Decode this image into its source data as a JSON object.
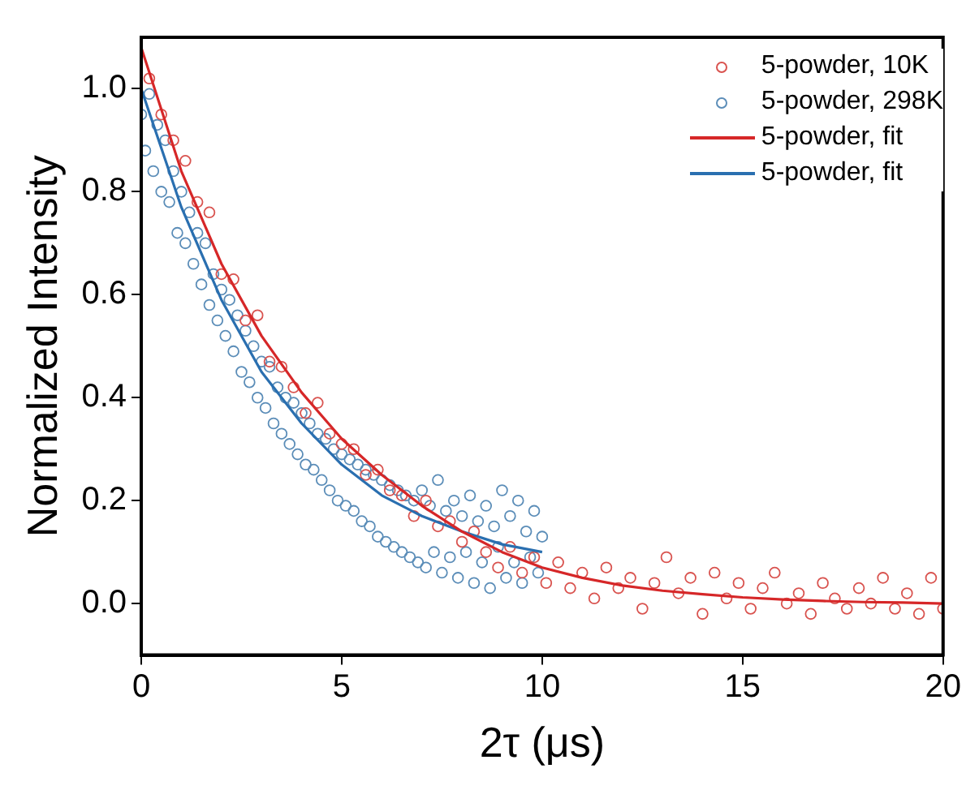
{
  "chart_data": {
    "type": "scatter",
    "xlabel": "2τ (μs)",
    "ylabel": "Normalized Intensity",
    "xlim": [
      0,
      20
    ],
    "ylim": [
      -0.1,
      1.1
    ],
    "xticks": [
      0,
      5,
      10,
      15,
      20
    ],
    "yticks": [
      {
        "value": 0,
        "label": "0.0"
      },
      {
        "value": 0.2,
        "label": "0.2"
      },
      {
        "value": 0.4,
        "label": "0.4"
      },
      {
        "value": 0.6,
        "label": "0.6"
      },
      {
        "value": 0.8,
        "label": "0.8"
      },
      {
        "value": 1,
        "label": "1.0"
      }
    ],
    "grid": false,
    "legend": "top right",
    "marker": "circle",
    "series": [
      {
        "name": "5-powder, 10K",
        "type": "scatter",
        "color": "#d9534f",
        "x": [
          0.2,
          0.5,
          0.8,
          1.1,
          1.4,
          1.7,
          2.0,
          2.3,
          2.6,
          2.9,
          3.2,
          3.5,
          3.8,
          4.1,
          4.4,
          4.7,
          5.0,
          5.3,
          5.6,
          5.9,
          6.2,
          6.5,
          6.8,
          7.1,
          7.4,
          7.7,
          8.0,
          8.3,
          8.6,
          8.9,
          9.2,
          9.5,
          9.8,
          10.1,
          10.4,
          10.7,
          11.0,
          11.3,
          11.6,
          11.9,
          12.2,
          12.5,
          12.8,
          13.1,
          13.4,
          13.7,
          14.0,
          14.3,
          14.6,
          14.9,
          15.2,
          15.5,
          15.8,
          16.1,
          16.4,
          16.7,
          17.0,
          17.3,
          17.6,
          17.9,
          18.2,
          18.5,
          18.8,
          19.1,
          19.4,
          19.7,
          20.0
        ],
        "values": [
          1.02,
          0.95,
          0.9,
          0.86,
          0.78,
          0.76,
          0.64,
          0.63,
          0.55,
          0.56,
          0.47,
          0.46,
          0.42,
          0.37,
          0.39,
          0.33,
          0.31,
          0.3,
          0.25,
          0.26,
          0.22,
          0.21,
          0.17,
          0.2,
          0.15,
          0.16,
          0.12,
          0.14,
          0.1,
          0.07,
          0.11,
          0.06,
          0.09,
          0.04,
          0.08,
          0.03,
          0.06,
          0.01,
          0.07,
          0.03,
          0.05,
          -0.01,
          0.04,
          0.09,
          0.02,
          0.05,
          -0.02,
          0.06,
          0.01,
          0.04,
          -0.01,
          0.03,
          0.06,
          0.0,
          0.02,
          -0.02,
          0.04,
          0.01,
          -0.01,
          0.03,
          0.0,
          0.05,
          -0.01,
          0.02,
          -0.02,
          0.05,
          -0.01
        ]
      },
      {
        "name": "5-powder, 298K",
        "type": "scatter",
        "color": "#5b8db8",
        "x": [
          0.0,
          0.1,
          0.2,
          0.3,
          0.4,
          0.5,
          0.6,
          0.7,
          0.8,
          0.9,
          1.0,
          1.1,
          1.2,
          1.3,
          1.4,
          1.5,
          1.6,
          1.7,
          1.8,
          1.9,
          2.0,
          2.1,
          2.2,
          2.3,
          2.4,
          2.5,
          2.6,
          2.7,
          2.8,
          2.9,
          3.0,
          3.1,
          3.2,
          3.3,
          3.4,
          3.5,
          3.6,
          3.7,
          3.8,
          3.9,
          4.0,
          4.1,
          4.2,
          4.3,
          4.4,
          4.5,
          4.6,
          4.7,
          4.8,
          4.9,
          5.0,
          5.1,
          5.2,
          5.3,
          5.4,
          5.5,
          5.6,
          5.7,
          5.8,
          5.9,
          6.0,
          6.1,
          6.2,
          6.3,
          6.4,
          6.5,
          6.6,
          6.7,
          6.8,
          6.9,
          7.0,
          7.1,
          7.2,
          7.3,
          7.4,
          7.5,
          7.6,
          7.7,
          7.8,
          7.9,
          8.0,
          8.1,
          8.2,
          8.3,
          8.4,
          8.5,
          8.6,
          8.7,
          8.8,
          8.9,
          9.0,
          9.1,
          9.2,
          9.3,
          9.4,
          9.5,
          9.6,
          9.7,
          9.8,
          9.9,
          10.0
        ],
        "values": [
          0.95,
          0.88,
          0.99,
          0.84,
          0.93,
          0.8,
          0.9,
          0.78,
          0.84,
          0.72,
          0.8,
          0.7,
          0.76,
          0.66,
          0.72,
          0.62,
          0.7,
          0.58,
          0.64,
          0.55,
          0.61,
          0.52,
          0.59,
          0.49,
          0.56,
          0.45,
          0.53,
          0.43,
          0.5,
          0.4,
          0.47,
          0.38,
          0.46,
          0.35,
          0.42,
          0.33,
          0.4,
          0.31,
          0.39,
          0.29,
          0.37,
          0.27,
          0.35,
          0.26,
          0.33,
          0.24,
          0.32,
          0.22,
          0.3,
          0.2,
          0.29,
          0.19,
          0.28,
          0.18,
          0.27,
          0.16,
          0.26,
          0.15,
          0.25,
          0.13,
          0.24,
          0.12,
          0.23,
          0.11,
          0.22,
          0.1,
          0.21,
          0.09,
          0.2,
          0.08,
          0.22,
          0.07,
          0.19,
          0.1,
          0.24,
          0.06,
          0.18,
          0.09,
          0.2,
          0.05,
          0.17,
          0.1,
          0.21,
          0.04,
          0.16,
          0.08,
          0.19,
          0.03,
          0.15,
          0.11,
          0.22,
          0.05,
          0.17,
          0.08,
          0.2,
          0.04,
          0.14,
          0.09,
          0.18,
          0.06,
          0.13
        ]
      },
      {
        "name": "5-powder, fit",
        "type": "line",
        "marker": "none",
        "color": "#d62728",
        "x": [
          0,
          1,
          2,
          3,
          4,
          5,
          6,
          7,
          8,
          9,
          10,
          11,
          12,
          13,
          14,
          15,
          16,
          17,
          18,
          19,
          20
        ],
        "values": [
          1.08,
          0.84,
          0.66,
          0.52,
          0.41,
          0.32,
          0.25,
          0.19,
          0.14,
          0.1,
          0.07,
          0.05,
          0.035,
          0.025,
          0.018,
          0.012,
          0.008,
          0.005,
          0.003,
          0.002,
          0.0
        ]
      },
      {
        "name": "5-powder, fit",
        "type": "line",
        "marker": "none",
        "color": "#2a6fb0",
        "x": [
          0,
          1,
          2,
          3,
          4,
          5,
          6,
          7,
          8,
          9,
          10
        ],
        "values": [
          1.0,
          0.77,
          0.59,
          0.45,
          0.35,
          0.27,
          0.21,
          0.17,
          0.14,
          0.115,
          0.1
        ]
      }
    ]
  }
}
